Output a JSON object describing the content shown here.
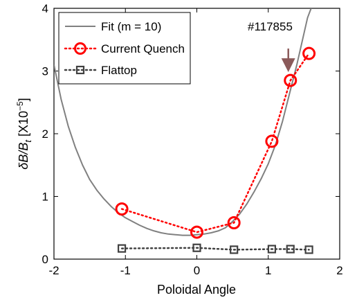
{
  "chart_data": {
    "type": "line",
    "xlabel": "Poloidal Angle",
    "ylabel_main": "δB/B",
    "ylabel_sub": "t",
    "ylabel_unit": " [X10",
    "ylabel_exp": "−5",
    "ylabel_close": "]",
    "xlim": [
      -2,
      2
    ],
    "ylim": [
      0,
      4
    ],
    "xticks": [
      -2,
      -1,
      0,
      1,
      2
    ],
    "yticks": [
      0,
      1,
      2,
      3,
      4
    ],
    "xtick_labels": [
      "-2",
      "-1",
      "0",
      "1",
      "2"
    ],
    "ytick_labels": [
      "0",
      "1",
      "2",
      "3",
      "4"
    ],
    "legend_position": "top-left",
    "grid": false,
    "annotation": "#117855",
    "arrow_target": {
      "x": 1.3,
      "y": 2.85
    },
    "series": [
      {
        "name": "Fit (m = 10)",
        "style": "solid",
        "marker": "none",
        "color": "#808080",
        "x": [
          -2.0,
          -1.9,
          -1.8,
          -1.7,
          -1.6,
          -1.5,
          -1.4,
          -1.3,
          -1.2,
          -1.1,
          -1.0,
          -0.9,
          -0.8,
          -0.7,
          -0.6,
          -0.5,
          -0.4,
          -0.3,
          -0.2,
          -0.1,
          0.0,
          0.1,
          0.2,
          0.3,
          0.4,
          0.5,
          0.6,
          0.7,
          0.8,
          0.9,
          1.0,
          1.1,
          1.2,
          1.3,
          1.4,
          1.5,
          1.55,
          1.6
        ],
        "y": [
          3.1,
          2.55,
          2.12,
          1.78,
          1.5,
          1.27,
          1.1,
          0.96,
          0.84,
          0.74,
          0.66,
          0.6,
          0.54,
          0.49,
          0.45,
          0.42,
          0.4,
          0.39,
          0.38,
          0.38,
          0.39,
          0.4,
          0.42,
          0.45,
          0.5,
          0.6,
          0.72,
          0.88,
          1.07,
          1.28,
          1.52,
          1.82,
          2.2,
          2.65,
          3.1,
          3.6,
          3.85,
          4.0
        ]
      },
      {
        "name": "Current Quench",
        "style": "dotted",
        "marker": "circle",
        "color": "#ff0000",
        "x": [
          -1.05,
          0.0,
          0.52,
          1.05,
          1.31,
          1.57
        ],
        "y": [
          0.8,
          0.43,
          0.58,
          1.88,
          2.85,
          3.28
        ]
      },
      {
        "name": "Flattop",
        "style": "dotted",
        "marker": "square",
        "color": "#404040",
        "x": [
          -1.05,
          0.0,
          0.52,
          1.05,
          1.31,
          1.57
        ],
        "y": [
          0.17,
          0.18,
          0.15,
          0.16,
          0.16,
          0.15
        ]
      }
    ]
  }
}
